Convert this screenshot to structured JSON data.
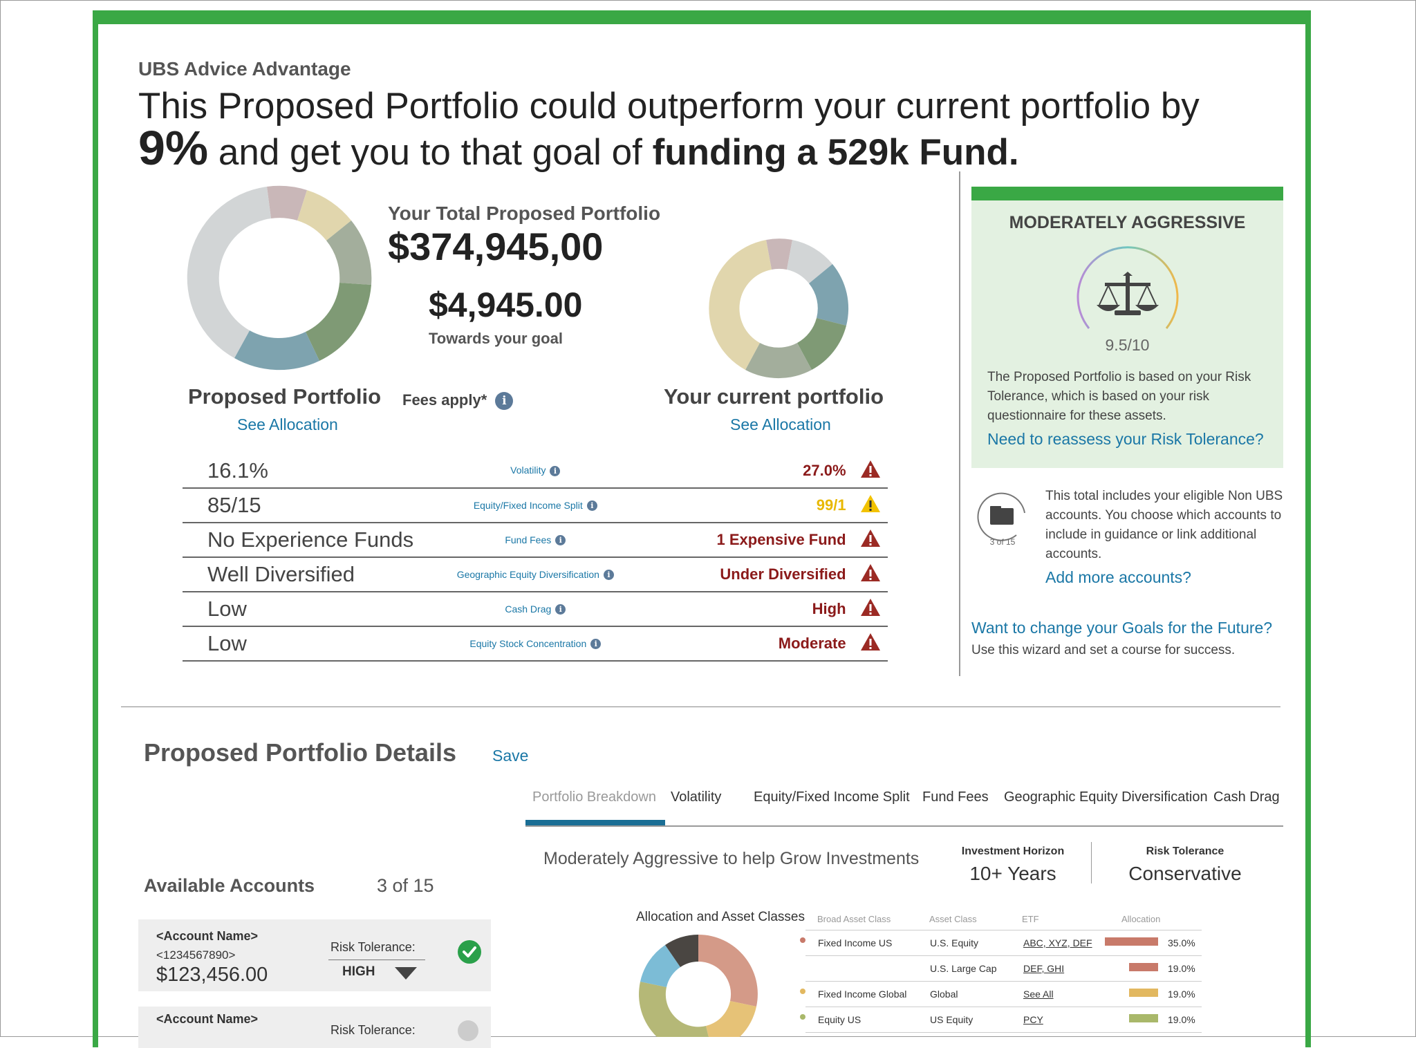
{
  "app_name": "UBS Advice Advantage",
  "headline": {
    "part1": "This Proposed Portfolio could outperform your current portfolio by",
    "percent": "9%",
    "part2": "and get you to that goal of",
    "goal": "funding a 529k Fund."
  },
  "proposed": {
    "total_label": "Your Total Proposed Portfolio",
    "total_value": "$374,945,00",
    "goal_value": "$4,945.00",
    "goal_label": "Towards your goal",
    "title": "Proposed Portfolio",
    "see_allocation": "See Allocation",
    "fees_label": "Fees apply*"
  },
  "current": {
    "title": "Your current portfolio",
    "see_allocation": "See Allocation"
  },
  "metrics": [
    {
      "proposed": "16.1%",
      "name": "Volatility",
      "current": "27.0%",
      "status": "danger"
    },
    {
      "proposed": "85/15",
      "name": "Equity/Fixed Income Split",
      "current": "99/1",
      "status": "caution"
    },
    {
      "proposed": "No Experience Funds",
      "name": "Fund Fees",
      "current": "1 Expensive Fund",
      "status": "danger"
    },
    {
      "proposed": "Well Diversified",
      "name": "Geographic Equity Diversification",
      "current": "Under Diversified",
      "status": "danger"
    },
    {
      "proposed": "Low",
      "name": "Cash Drag",
      "current": "High",
      "status": "danger"
    },
    {
      "proposed": "Low",
      "name": "Equity Stock Concentration",
      "current": "Moderate",
      "status": "danger"
    }
  ],
  "risk": {
    "title": "MODERATELY AGGRESSIVE",
    "score": "9.5/10",
    "description": "The Proposed Portfolio is based on your Risk Tolerance, which is based on your risk questionnaire for these assets.",
    "reassess_link": "Need to reassess your Risk Tolerance?"
  },
  "accounts_info": {
    "badge": "3 of 15",
    "description": "This total includes your eligible Non UBS accounts. You choose which accounts to include in guidance or link additional accounts.",
    "add_link": "Add more accounts?"
  },
  "goals": {
    "link": "Want to change your Goals for the Future?",
    "sub": "Use this wizard and set a course for success."
  },
  "details": {
    "title": "Proposed Portfolio Details",
    "save": "Save",
    "tabs": [
      "Portfolio Breakdown",
      "Volatility",
      "Equity/Fixed Income Split",
      "Fund Fees",
      "Geographic Equity Diversification",
      "Cash Drag"
    ],
    "active_tab": "Portfolio Breakdown",
    "goal_text": "Moderately Aggressive to help Grow Investments",
    "horizon_label": "Investment Horizon",
    "horizon_value": "10+ Years",
    "rt_label": "Risk Tolerance",
    "rt_value": "Conservative"
  },
  "available_accounts": {
    "title": "Available Accounts",
    "count": "3 of 15",
    "accounts": [
      {
        "name": "<Account Name>",
        "number": "<1234567890>",
        "balance": "$123,456.00",
        "rt_label": "Risk Tolerance:",
        "rt_value": "HIGH",
        "selected": true
      },
      {
        "name": "<Account Name>",
        "number": "",
        "balance": "",
        "rt_label": "Risk Tolerance:",
        "rt_value": "",
        "selected": false
      }
    ]
  },
  "allocation": {
    "title": "Allocation and Asset Classes",
    "headers": [
      "Broad Asset Class",
      "Asset Class",
      "ETF",
      "Allocation"
    ],
    "rows": [
      {
        "broad": "Fixed Income US",
        "asset": "U.S. Equity",
        "etf": "ABC, XYZ, DEF",
        "alloc": "35.0%",
        "alloc_value": 35.0,
        "color": "#c87a6a"
      },
      {
        "broad": "",
        "asset": "U.S. Large Cap",
        "etf": "DEF, GHI",
        "alloc": "19.0%",
        "alloc_value": 19.0,
        "color": "#c87a6a"
      },
      {
        "broad": "Fixed Income Global",
        "asset": "Global",
        "etf": "See All",
        "alloc": "19.0%",
        "alloc_value": 19.0,
        "color": "#e2b860"
      },
      {
        "broad": "Equity US",
        "asset": "US Equity",
        "etf": "PCY",
        "alloc": "19.0%",
        "alloc_value": 19.0,
        "color": "#a9b86a"
      }
    ]
  },
  "colors": {
    "brand_green": "#3aa845",
    "link_blue": "#1a77a6",
    "danger_red": "#8b1a1a",
    "caution_yellow": "#e8b800"
  }
}
